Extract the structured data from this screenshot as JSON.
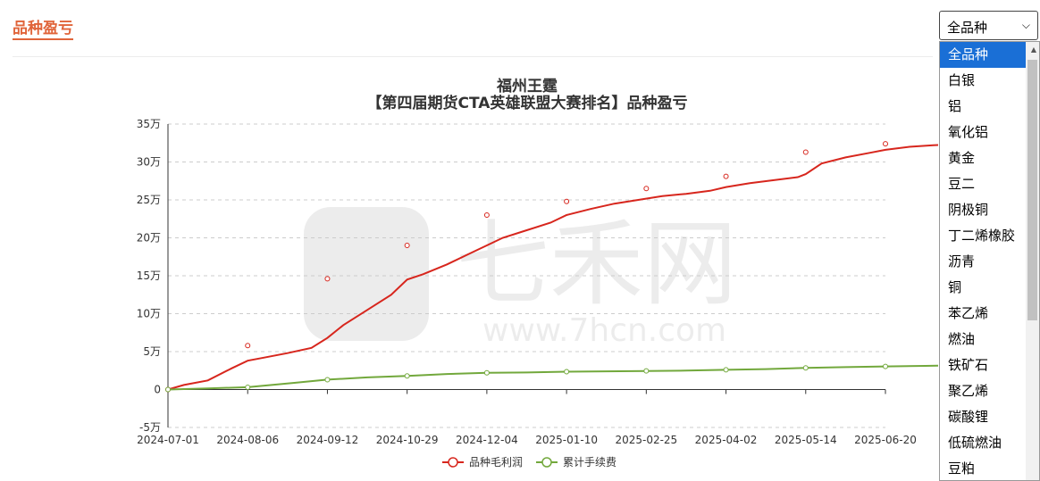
{
  "header": {
    "section_title": "品种盈亏"
  },
  "filter": {
    "selected": "全品种",
    "options": [
      "全品种",
      "白银",
      "铝",
      "氧化铝",
      "黄金",
      "豆二",
      "阴极铜",
      "丁二烯橡胶",
      "沥青",
      "铜",
      "苯乙烯",
      "燃油",
      "铁矿石",
      "聚乙烯",
      "碳酸锂",
      "低硫燃油",
      "豆粕"
    ]
  },
  "watermark": {
    "text": "七禾网",
    "url": "www.7hcn.com"
  },
  "chart_data": {
    "type": "line",
    "title": "福州王霆",
    "subtitle": "【第四届期货CTA英雄联盟大赛排名】品种盈亏",
    "ylim": [
      -50000,
      350000
    ],
    "yticks": [
      {
        "value": 350000,
        "label": "35万"
      },
      {
        "value": 300000,
        "label": "30万"
      },
      {
        "value": 250000,
        "label": "25万"
      },
      {
        "value": 200000,
        "label": "20万"
      },
      {
        "value": 150000,
        "label": "15万"
      },
      {
        "value": 100000,
        "label": "10万"
      },
      {
        "value": 50000,
        "label": "5万"
      },
      {
        "value": 0,
        "label": "0"
      },
      {
        "value": -50000,
        "label": "-5万"
      }
    ],
    "xticks": [
      "2024-07-01",
      "2024-08-06",
      "2024-09-12",
      "2024-10-29",
      "2024-12-04",
      "2025-01-10",
      "2025-02-25",
      "2025-04-02",
      "2025-05-14",
      "2025-06-20"
    ],
    "grid": true,
    "legend_position": "bottom",
    "colors": {
      "profit": "#d7261d",
      "fees": "#72a83c"
    },
    "series": [
      {
        "name": "品种毛利润",
        "points": [
          [
            0,
            0
          ],
          [
            0.2,
            6000
          ],
          [
            0.5,
            12000
          ],
          [
            0.8,
            28000
          ],
          [
            1.0,
            38000
          ],
          [
            1.2,
            42000
          ],
          [
            1.5,
            48000
          ],
          [
            1.8,
            55000
          ],
          [
            2.0,
            68000
          ],
          [
            2.2,
            85000
          ],
          [
            2.5,
            105000
          ],
          [
            2.8,
            125000
          ],
          [
            3.0,
            145000
          ],
          [
            3.2,
            152000
          ],
          [
            3.5,
            165000
          ],
          [
            3.8,
            180000
          ],
          [
            4.0,
            190000
          ],
          [
            4.2,
            200000
          ],
          [
            4.5,
            210000
          ],
          [
            4.8,
            220000
          ],
          [
            5.0,
            230000
          ],
          [
            5.3,
            238000
          ],
          [
            5.6,
            245000
          ],
          [
            5.9,
            250000
          ],
          [
            6.2,
            255000
          ],
          [
            6.5,
            258000
          ],
          [
            6.8,
            262000
          ],
          [
            7.0,
            267000
          ],
          [
            7.3,
            272000
          ],
          [
            7.6,
            276000
          ],
          [
            7.9,
            280000
          ],
          [
            8.0,
            284000
          ],
          [
            8.2,
            298000
          ],
          [
            8.5,
            306000
          ],
          [
            8.8,
            312000
          ],
          [
            9.0,
            316000
          ],
          [
            9.3,
            320000
          ],
          [
            9.6,
            322000
          ],
          [
            10.0,
            324000
          ]
        ],
        "markers": [
          [
            0,
            0
          ],
          [
            1,
            58000
          ],
          [
            2,
            146000
          ],
          [
            3,
            190000
          ],
          [
            4,
            230000
          ],
          [
            5,
            248000
          ],
          [
            6,
            265000
          ],
          [
            7,
            281000
          ],
          [
            8,
            313000
          ],
          [
            9,
            324000
          ]
        ]
      },
      {
        "name": "累计手续费",
        "points": [
          [
            0,
            0
          ],
          [
            0.5,
            1500
          ],
          [
            1.0,
            3000
          ],
          [
            1.3,
            6000
          ],
          [
            1.6,
            9000
          ],
          [
            2.0,
            13000
          ],
          [
            2.5,
            16000
          ],
          [
            3.0,
            18000
          ],
          [
            3.5,
            20500
          ],
          [
            4.0,
            22000
          ],
          [
            4.5,
            22500
          ],
          [
            5.0,
            23500
          ],
          [
            5.5,
            24000
          ],
          [
            6.0,
            24500
          ],
          [
            6.5,
            25000
          ],
          [
            7.0,
            26000
          ],
          [
            7.5,
            27000
          ],
          [
            8.0,
            28500
          ],
          [
            8.5,
            29500
          ],
          [
            9.0,
            30500
          ],
          [
            9.5,
            31200
          ],
          [
            10.0,
            32000
          ]
        ],
        "markers": [
          [
            0,
            0
          ],
          [
            1,
            3000
          ],
          [
            2,
            13000
          ],
          [
            3,
            18000
          ],
          [
            4,
            22000
          ],
          [
            5,
            23500
          ],
          [
            6,
            24500
          ],
          [
            7,
            26000
          ],
          [
            8,
            28500
          ],
          [
            9,
            30500
          ],
          [
            10,
            32000
          ]
        ]
      }
    ]
  }
}
